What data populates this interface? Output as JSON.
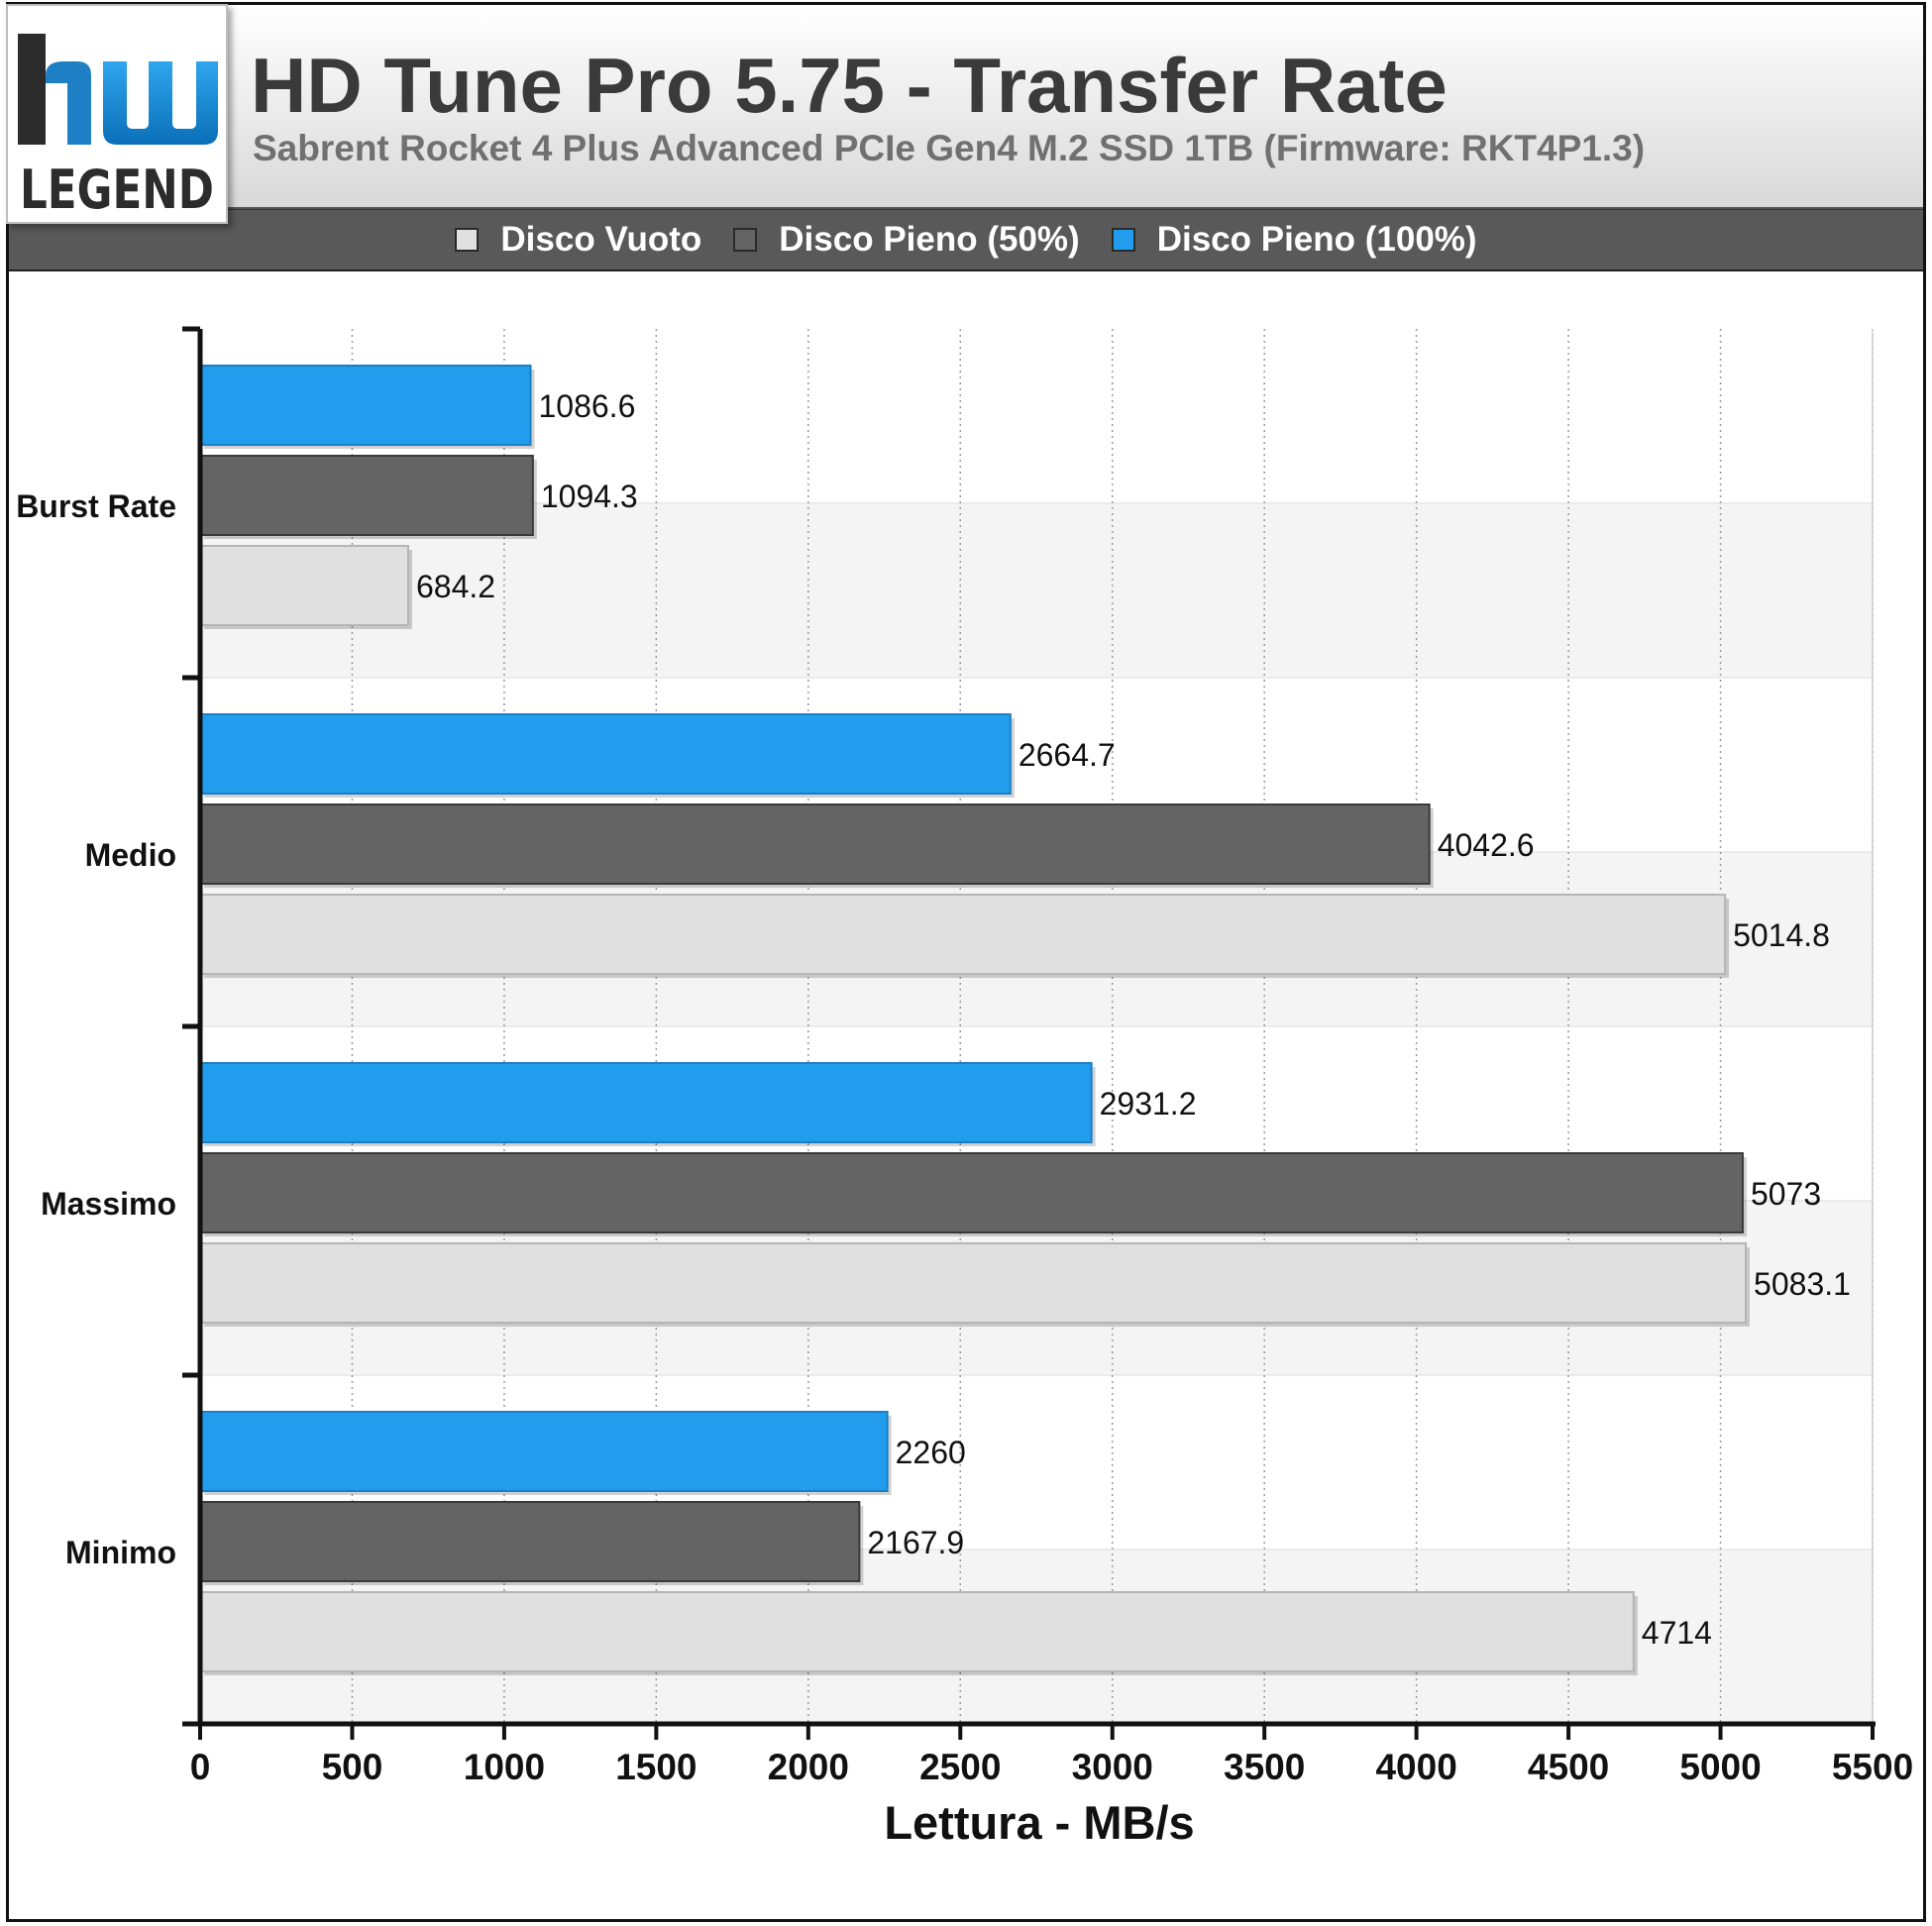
{
  "logo": {
    "mark": "hw",
    "text": "LEGEND"
  },
  "header": {
    "title": "HD Tune Pro 5.75 - Transfer Rate",
    "subtitle": "Sabrent Rocket 4 Plus Advanced PCIe Gen4 M.2 SSD 1TB (Firmware: RKT4P1.3)"
  },
  "colors": {
    "disco_vuoto": "#e0e0e0",
    "disco_pieno_50": "#646464",
    "disco_pieno_100": "#229ded",
    "logo_blue": "#1a8fd6"
  },
  "legend": [
    {
      "label": "Disco Vuoto",
      "color": "#e0e0e0"
    },
    {
      "label": "Disco Pieno (50%)",
      "color": "#646464"
    },
    {
      "label": "Disco Pieno (100%)",
      "color": "#229ded"
    }
  ],
  "chart_data": {
    "type": "bar",
    "orientation": "horizontal",
    "categories": [
      "Burst Rate",
      "Medio",
      "Massimo",
      "Minimo"
    ],
    "series": [
      {
        "name": "Disco Pieno (100%)",
        "color": "#229ded",
        "values": [
          1086.6,
          2664.7,
          2931.2,
          2260
        ]
      },
      {
        "name": "Disco Pieno (50%)",
        "color": "#646464",
        "values": [
          1094.3,
          4042.6,
          5073,
          2167.9
        ]
      },
      {
        "name": "Disco Vuoto",
        "color": "#e0e0e0",
        "values": [
          684.2,
          5014.8,
          5083.1,
          4714
        ]
      }
    ],
    "value_labels": [
      [
        "1086.6",
        "2664.7",
        "2931.2",
        "2260"
      ],
      [
        "1094.3",
        "4042.6",
        "5073",
        "2167.9"
      ],
      [
        "684.2",
        "5014.8",
        "5083.1",
        "4714"
      ]
    ],
    "xlabel": "Lettura - MB/s",
    "xlim": [
      0,
      5500
    ],
    "xticks": [
      "0",
      "500",
      "1000",
      "1500",
      "2000",
      "2500",
      "3000",
      "3500",
      "4000",
      "4500",
      "5000",
      "5500"
    ],
    "grid": true,
    "legend_position": "top"
  }
}
